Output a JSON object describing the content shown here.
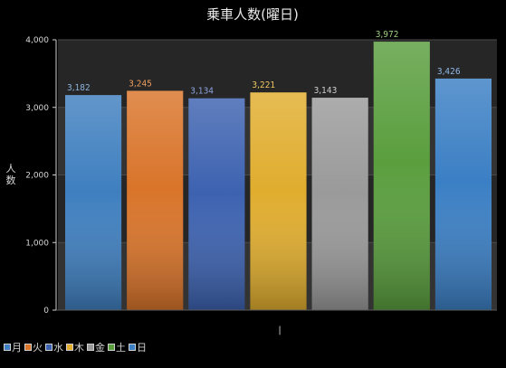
{
  "chart_data": {
    "type": "bar",
    "title": "乗車人数(曜日)",
    "xlabel": "",
    "ylabel": "人数",
    "categories": [
      "月",
      "火",
      "水",
      "木",
      "金",
      "土",
      "日"
    ],
    "values": [
      3182,
      3245,
      3134,
      3221,
      3143,
      3972,
      3426
    ],
    "value_labels": [
      "3,182",
      "3,245",
      "3,134",
      "3,221",
      "3,143",
      "3,972",
      "3,426"
    ],
    "colors": [
      "#3f7fbf",
      "#d9742a",
      "#3d62b0",
      "#e0ad2e",
      "#9a9a9a",
      "#5a9e3e",
      "#3b7fc4"
    ],
    "label_colors": [
      "#8fb4e0",
      "#f0a060",
      "#8fa4e0",
      "#f0c860",
      "#cfcfcf",
      "#9fd080",
      "#8fb8e8"
    ],
    "ylim": [
      0,
      4000
    ],
    "yticks": [
      0,
      1000,
      2000,
      3000,
      4000
    ],
    "ytick_labels": [
      "0",
      "1,000",
      "2,000",
      "3,000",
      "4,000"
    ],
    "xtick_label": "|",
    "grid": true,
    "legend": "bottom-left"
  }
}
